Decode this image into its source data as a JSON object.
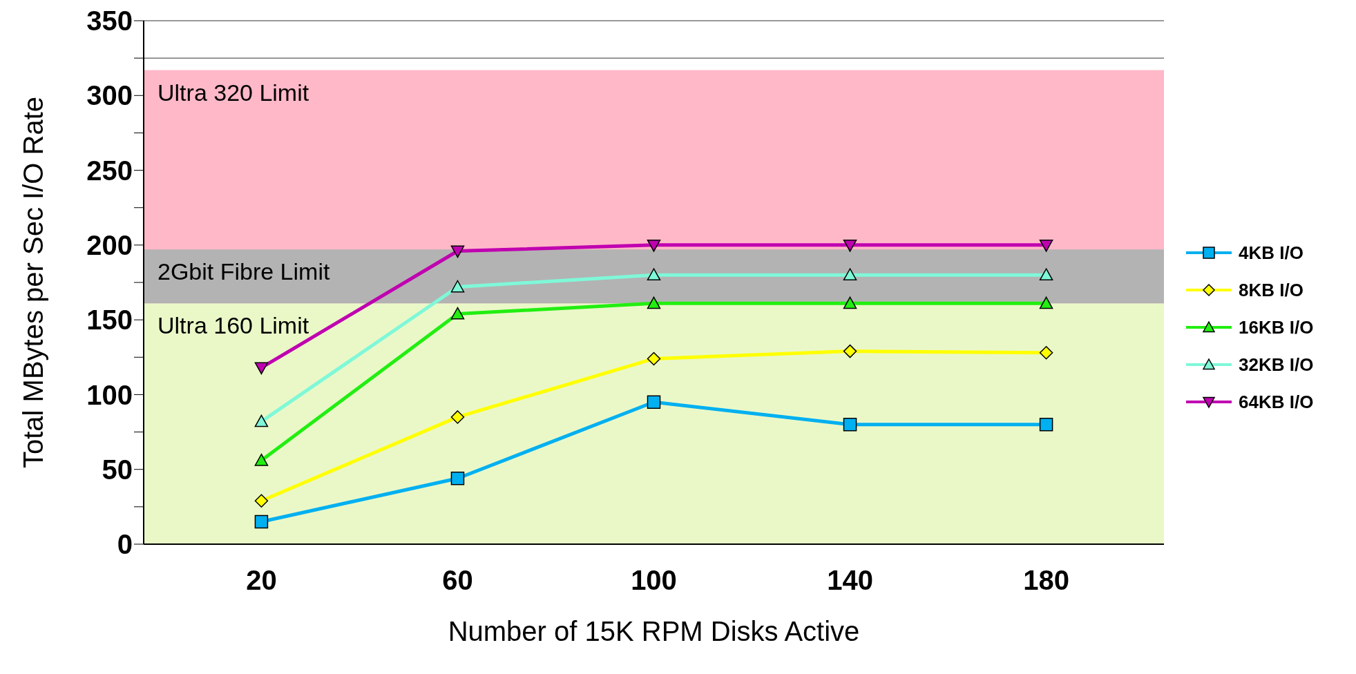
{
  "chart_data": {
    "type": "line",
    "xlabel": "Number of 15K RPM Disks Active",
    "ylabel": "Total MBytes per Sec I/O Rate",
    "categories": [
      "20",
      "60",
      "100",
      "140",
      "180"
    ],
    "series": [
      {
        "name": "4KB I/O",
        "color": "#00b0f0",
        "marker": "square",
        "values": [
          15,
          44,
          95,
          80,
          80
        ]
      },
      {
        "name": "8KB I/O",
        "color": "#ffff00",
        "marker": "diamond",
        "values": [
          29,
          85,
          124,
          129,
          128
        ]
      },
      {
        "name": "16KB I/O",
        "color": "#22ee11",
        "marker": "triangle",
        "values": [
          56,
          154,
          161,
          161,
          161
        ]
      },
      {
        "name": "32KB I/O",
        "color": "#7ff8d8",
        "marker": "triangle",
        "values": [
          82,
          172,
          180,
          180,
          180
        ]
      },
      {
        "name": "64KB I/O",
        "color": "#c000b0",
        "marker": "triangle-down",
        "values": [
          118,
          196,
          200,
          200,
          200
        ]
      }
    ],
    "ylim": [
      0,
      350
    ],
    "yticks": [
      0,
      {
        "value": 25,
        "label": null
      },
      50,
      {
        "value": 75,
        "label": null
      },
      100,
      {
        "value": 125,
        "label": null
      },
      150,
      {
        "value": 175,
        "label": null
      },
      200,
      {
        "value": 225,
        "label": null
      },
      250,
      {
        "value": 275,
        "label": null
      },
      300,
      {
        "value": 325,
        "label": null
      },
      350
    ],
    "bands": [
      {
        "axis": "y",
        "from": 160,
        "to": 317,
        "label": "Ultra 320 Limit",
        "color": "#ffb8c8"
      },
      {
        "axis": "y",
        "from": 0,
        "to": 161,
        "label": "Ultra 160 Limit",
        "color": "#eaf8c8"
      },
      {
        "axis": "y",
        "from": 161,
        "to": 197,
        "label": "2Gbit Fibre Limit",
        "color": "#b3b3b3"
      }
    ],
    "grid": "y",
    "legend": "right",
    "line_style": "solid"
  }
}
